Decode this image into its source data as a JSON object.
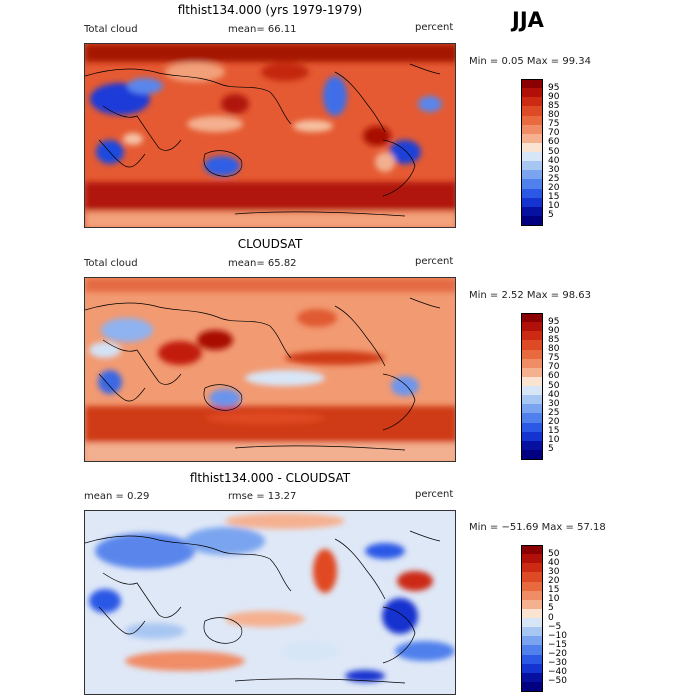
{
  "season": "JJA",
  "panels": [
    {
      "title": "flthist134.000 (yrs 1979-1979)",
      "left_label": "Total cloud",
      "center_label": "mean=  66.11",
      "right_label": "percent",
      "minmax": "Min =    0.05 Max =  99.34",
      "colorbar": {
        "labels": [
          "95",
          "90",
          "85",
          "80",
          "75",
          "70",
          "60",
          "50",
          "40",
          "30",
          "25",
          "20",
          "15",
          "10",
          "5"
        ],
        "colors": [
          "#8b0000",
          "#b01008",
          "#cc2a12",
          "#dd4a26",
          "#ea6a40",
          "#f08c66",
          "#f5b090",
          "#fbe3d2",
          "#d6e6f7",
          "#a8c6f2",
          "#7aa4ef",
          "#4f80ec",
          "#2c58e6",
          "#1433cf",
          "#07119f",
          "#000080"
        ]
      }
    },
    {
      "title": "CLOUDSAT",
      "left_label": "Total cloud",
      "center_label": "mean=  65.82",
      "right_label": "percent",
      "minmax": "Min =    2.52 Max =  98.63",
      "colorbar": {
        "labels": [
          "95",
          "90",
          "85",
          "80",
          "75",
          "70",
          "60",
          "50",
          "40",
          "30",
          "25",
          "20",
          "15",
          "10",
          "5"
        ],
        "colors": [
          "#8b0000",
          "#b01008",
          "#cc2a12",
          "#dd4a26",
          "#ea6a40",
          "#f08c66",
          "#f5b090",
          "#fbe3d2",
          "#d6e6f7",
          "#a8c6f2",
          "#7aa4ef",
          "#4f80ec",
          "#2c58e6",
          "#1433cf",
          "#07119f",
          "#000080"
        ]
      }
    },
    {
      "title": "flthist134.000 - CLOUDSAT",
      "left_label": "mean =    0.29",
      "center_label": "rmse =  13.27",
      "right_label": "percent",
      "minmax": "Min = −51.69 Max =  57.18",
      "colorbar": {
        "labels": [
          "50",
          "40",
          "30",
          "20",
          "15",
          "10",
          "5",
          "0",
          "−5",
          "−10",
          "−15",
          "−20",
          "−30",
          "−40",
          "−50"
        ],
        "colors": [
          "#8b0000",
          "#b01008",
          "#cc2a12",
          "#dd4a26",
          "#ea6a40",
          "#f08c66",
          "#f5b090",
          "#fbe3d2",
          "#d6e6f7",
          "#a8c6f2",
          "#7aa4ef",
          "#4f80ec",
          "#2c58e6",
          "#1433cf",
          "#07119f",
          "#000080"
        ]
      }
    }
  ]
}
